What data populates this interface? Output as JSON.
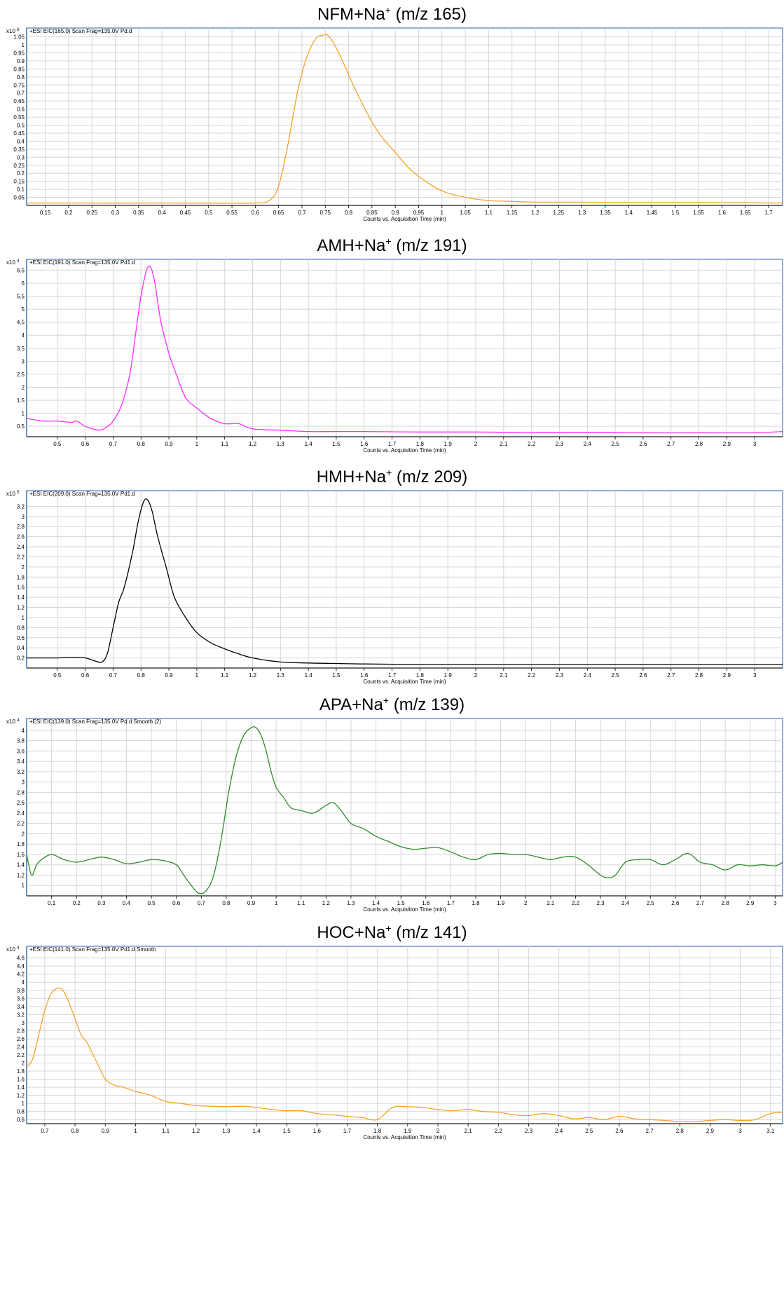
{
  "chart_data": [
    {
      "type": "line",
      "title_main": "NFM+Na",
      "title_sup": "+",
      "title_tail": " (m/z 165)",
      "multiplier_base": "x10",
      "multiplier_exp": "6",
      "trace_label": "+ESI EIC(165.0) Scan Frag=135.0V Pd.d",
      "xlabel": "Counts vs. Acquisition Time (min)",
      "color": "#f7a12a",
      "xlim": [
        0.11,
        1.73
      ],
      "ylim": [
        0.0,
        1.07
      ],
      "xticks": [
        0.15,
        0.2,
        0.25,
        0.3,
        0.35,
        0.4,
        0.45,
        0.5,
        0.55,
        0.6,
        0.65,
        0.7,
        0.75,
        0.8,
        0.85,
        0.9,
        0.95,
        1,
        1.05,
        1.1,
        1.15,
        1.2,
        1.25,
        1.3,
        1.35,
        1.4,
        1.45,
        1.5,
        1.55,
        1.6,
        1.65,
        1.7
      ],
      "yticks": [
        0.05,
        0.1,
        0.15,
        0.2,
        0.25,
        0.3,
        0.35,
        0.4,
        0.45,
        0.5,
        0.55,
        0.6,
        0.65,
        0.7,
        0.75,
        0.8,
        0.85,
        0.9,
        0.95,
        1,
        1.05
      ],
      "x": [
        0.11,
        0.2,
        0.3,
        0.4,
        0.5,
        0.6,
        0.63,
        0.65,
        0.67,
        0.69,
        0.71,
        0.73,
        0.745,
        0.755,
        0.77,
        0.79,
        0.81,
        0.83,
        0.85,
        0.87,
        0.9,
        0.93,
        0.96,
        1.0,
        1.05,
        1.1,
        1.15,
        1.2,
        1.3,
        1.4,
        1.5,
        1.6,
        1.73
      ],
      "y": [
        0.015,
        0.015,
        0.014,
        0.015,
        0.014,
        0.015,
        0.03,
        0.12,
        0.38,
        0.7,
        0.92,
        1.04,
        1.06,
        1.06,
        1.0,
        0.88,
        0.75,
        0.63,
        0.52,
        0.43,
        0.33,
        0.23,
        0.16,
        0.09,
        0.05,
        0.03,
        0.025,
        0.02,
        0.02,
        0.018,
        0.018,
        0.017,
        0.015
      ]
    },
    {
      "type": "line",
      "title_main": "AMH+Na",
      "title_sup": "+",
      "title_tail": " (m/z 191)",
      "multiplier_base": "x10",
      "multiplier_exp": "4",
      "trace_label": "+ESI EIC(191.0) Scan Frag=135.0V Pd1.d",
      "xlabel": "Counts vs. Acquisition Time (min)",
      "color": "#ff2bff",
      "xlim": [
        0.39,
        3.1
      ],
      "ylim": [
        0.1,
        6.7
      ],
      "xticks": [
        0.5,
        0.6,
        0.7,
        0.8,
        0.9,
        1,
        1.1,
        1.2,
        1.3,
        1.4,
        1.5,
        1.6,
        1.7,
        1.8,
        1.9,
        2,
        2.1,
        2.2,
        2.3,
        2.4,
        2.5,
        2.6,
        2.7,
        2.8,
        2.9,
        3
      ],
      "yticks": [
        0.5,
        1,
        1.5,
        2,
        2.5,
        3,
        3.5,
        4,
        4.5,
        5,
        5.5,
        6,
        6.5
      ],
      "x": [
        0.39,
        0.45,
        0.5,
        0.55,
        0.57,
        0.6,
        0.65,
        0.68,
        0.7,
        0.73,
        0.76,
        0.78,
        0.8,
        0.82,
        0.835,
        0.85,
        0.87,
        0.9,
        0.93,
        0.96,
        1.0,
        1.05,
        1.1,
        1.15,
        1.2,
        1.3,
        1.4,
        1.5,
        1.6,
        1.8,
        2.0,
        2.2,
        2.4,
        2.6,
        2.8,
        3.0,
        3.1
      ],
      "y": [
        0.8,
        0.7,
        0.7,
        0.65,
        0.7,
        0.5,
        0.35,
        0.5,
        0.7,
        1.3,
        2.5,
        4.0,
        5.5,
        6.5,
        6.6,
        6.0,
        4.6,
        3.3,
        2.4,
        1.6,
        1.2,
        0.8,
        0.6,
        0.6,
        0.4,
        0.35,
        0.3,
        0.3,
        0.3,
        0.28,
        0.28,
        0.26,
        0.27,
        0.25,
        0.25,
        0.25,
        0.3
      ]
    },
    {
      "type": "line",
      "title_main": "HMH+Na",
      "title_sup": "+",
      "title_tail": " (m/z 209)",
      "multiplier_base": "x10",
      "multiplier_exp": "5",
      "trace_label": "+ESI EIC(209.0) Scan Frag=135.0V Pd1.d",
      "xlabel": "Counts vs. Acquisition Time (min)",
      "color": "#000000",
      "xlim": [
        0.39,
        3.1
      ],
      "ylim": [
        0.0,
        3.4
      ],
      "xticks": [
        0.5,
        0.6,
        0.7,
        0.8,
        0.9,
        1,
        1.1,
        1.2,
        1.3,
        1.4,
        1.5,
        1.6,
        1.7,
        1.8,
        1.9,
        2,
        2.1,
        2.2,
        2.3,
        2.4,
        2.5,
        2.6,
        2.7,
        2.8,
        2.9,
        3
      ],
      "yticks": [
        0.2,
        0.4,
        0.6,
        0.8,
        1,
        1.2,
        1.4,
        1.6,
        1.8,
        2,
        2.2,
        2.4,
        2.6,
        2.8,
        3,
        3.2
      ],
      "x": [
        0.39,
        0.45,
        0.5,
        0.55,
        0.6,
        0.63,
        0.66,
        0.68,
        0.7,
        0.72,
        0.74,
        0.77,
        0.79,
        0.81,
        0.825,
        0.84,
        0.86,
        0.89,
        0.92,
        0.96,
        1.0,
        1.05,
        1.1,
        1.15,
        1.2,
        1.3,
        1.4,
        1.5,
        1.6,
        1.8,
        2.0,
        2.2,
        2.4,
        2.6,
        2.8,
        3.0,
        3.1
      ],
      "y": [
        0.2,
        0.2,
        0.2,
        0.21,
        0.2,
        0.15,
        0.12,
        0.3,
        0.8,
        1.3,
        1.6,
        2.3,
        2.9,
        3.3,
        3.32,
        3.1,
        2.6,
        2.0,
        1.4,
        1.0,
        0.7,
        0.5,
        0.38,
        0.28,
        0.2,
        0.12,
        0.1,
        0.09,
        0.08,
        0.07,
        0.07,
        0.07,
        0.07,
        0.07,
        0.07,
        0.07,
        0.07
      ]
    },
    {
      "type": "line",
      "title_main": "APA+Na",
      "title_sup": "+",
      "title_tail": " (m/z 139)",
      "multiplier_base": "x10",
      "multiplier_exp": "4",
      "trace_label": "+ESI EIC(139.0) Scan Frag=135.0V Pd.d  Smooth (2)",
      "xlabel": "Counts vs. Acquisition Time (min)",
      "color": "#2e8b2e",
      "xlim": [
        0.0,
        3.03
      ],
      "ylim": [
        0.8,
        4.12
      ],
      "xticks": [
        0.1,
        0.2,
        0.3,
        0.4,
        0.5,
        0.6,
        0.7,
        0.8,
        0.9,
        1,
        1.1,
        1.2,
        1.3,
        1.4,
        1.5,
        1.6,
        1.7,
        1.8,
        1.9,
        2,
        2.1,
        2.2,
        2.3,
        2.4,
        2.5,
        2.6,
        2.7,
        2.8,
        2.9,
        3
      ],
      "yticks": [
        1,
        1.2,
        1.4,
        1.6,
        1.8,
        2,
        2.2,
        2.4,
        2.6,
        2.8,
        3,
        3.2,
        3.4,
        3.6,
        3.8,
        4
      ],
      "x": [
        0.0,
        0.02,
        0.04,
        0.06,
        0.1,
        0.15,
        0.2,
        0.25,
        0.3,
        0.35,
        0.4,
        0.45,
        0.5,
        0.55,
        0.6,
        0.63,
        0.66,
        0.69,
        0.72,
        0.75,
        0.78,
        0.81,
        0.84,
        0.87,
        0.9,
        0.92,
        0.94,
        0.96,
        0.98,
        1.0,
        1.03,
        1.06,
        1.1,
        1.15,
        1.2,
        1.23,
        1.26,
        1.3,
        1.35,
        1.4,
        1.45,
        1.5,
        1.55,
        1.6,
        1.65,
        1.7,
        1.75,
        1.8,
        1.85,
        1.9,
        1.95,
        2.0,
        2.05,
        2.1,
        2.15,
        2.2,
        2.25,
        2.3,
        2.33,
        2.36,
        2.4,
        2.45,
        2.5,
        2.55,
        2.6,
        2.65,
        2.7,
        2.75,
        2.8,
        2.85,
        2.9,
        2.95,
        3.0,
        3.03
      ],
      "y": [
        1.6,
        1.2,
        1.4,
        1.5,
        1.6,
        1.5,
        1.45,
        1.5,
        1.55,
        1.5,
        1.42,
        1.45,
        1.5,
        1.48,
        1.4,
        1.2,
        1.0,
        0.85,
        0.9,
        1.2,
        1.9,
        2.8,
        3.5,
        3.9,
        4.05,
        4.05,
        3.9,
        3.6,
        3.2,
        2.9,
        2.7,
        2.5,
        2.45,
        2.4,
        2.55,
        2.6,
        2.45,
        2.2,
        2.1,
        1.95,
        1.85,
        1.75,
        1.7,
        1.72,
        1.73,
        1.65,
        1.55,
        1.5,
        1.6,
        1.62,
        1.6,
        1.6,
        1.55,
        1.5,
        1.55,
        1.55,
        1.4,
        1.2,
        1.15,
        1.2,
        1.45,
        1.5,
        1.5,
        1.4,
        1.5,
        1.62,
        1.45,
        1.4,
        1.3,
        1.4,
        1.38,
        1.4,
        1.38,
        1.45
      ]
    },
    {
      "type": "line",
      "title_main": "HOC+Na",
      "title_sup": "+",
      "title_tail": " (m/z 141)",
      "multiplier_base": "x10",
      "multiplier_exp": "4",
      "trace_label": "+ESI EIC(141.0) Scan Frag=135.0V Pd1.d  Smooth",
      "xlabel": "Counts vs. Acquisition Time (min)",
      "color": "#f7a12a",
      "xlim": [
        0.64,
        3.14
      ],
      "ylim": [
        0.5,
        4.75
      ],
      "xticks": [
        0.7,
        0.8,
        0.9,
        1,
        1.1,
        1.2,
        1.3,
        1.4,
        1.5,
        1.6,
        1.7,
        1.8,
        1.9,
        2,
        2.1,
        2.2,
        2.3,
        2.4,
        2.5,
        2.6,
        2.7,
        2.8,
        2.9,
        3,
        3.1
      ],
      "yticks": [
        0.6,
        0.8,
        1,
        1.2,
        1.4,
        1.6,
        1.8,
        2,
        2.2,
        2.4,
        2.6,
        2.8,
        3,
        3.2,
        3.4,
        3.6,
        3.8,
        4,
        4.2,
        4.4,
        4.6
      ],
      "x": [
        0.64,
        0.66,
        0.68,
        0.7,
        0.72,
        0.74,
        0.76,
        0.78,
        0.8,
        0.82,
        0.84,
        0.86,
        0.88,
        0.9,
        0.93,
        0.96,
        1.0,
        1.05,
        1.1,
        1.15,
        1.2,
        1.25,
        1.3,
        1.35,
        1.4,
        1.45,
        1.5,
        1.55,
        1.6,
        1.65,
        1.7,
        1.75,
        1.8,
        1.85,
        1.9,
        1.95,
        2.0,
        2.05,
        2.1,
        2.15,
        2.2,
        2.25,
        2.3,
        2.35,
        2.4,
        2.45,
        2.5,
        2.55,
        2.6,
        2.65,
        2.7,
        2.75,
        2.8,
        2.85,
        2.9,
        2.95,
        3.0,
        3.05,
        3.1,
        3.14
      ],
      "y": [
        1.9,
        2.1,
        2.7,
        3.3,
        3.7,
        3.85,
        3.8,
        3.5,
        3.1,
        2.7,
        2.5,
        2.2,
        1.9,
        1.6,
        1.45,
        1.4,
        1.3,
        1.2,
        1.05,
        1.0,
        0.95,
        0.93,
        0.92,
        0.93,
        0.9,
        0.85,
        0.82,
        0.82,
        0.75,
        0.72,
        0.68,
        0.65,
        0.6,
        0.9,
        0.92,
        0.9,
        0.85,
        0.82,
        0.85,
        0.8,
        0.78,
        0.72,
        0.7,
        0.75,
        0.7,
        0.62,
        0.65,
        0.6,
        0.68,
        0.62,
        0.6,
        0.58,
        0.55,
        0.55,
        0.58,
        0.6,
        0.58,
        0.6,
        0.75,
        0.78
      ]
    }
  ]
}
